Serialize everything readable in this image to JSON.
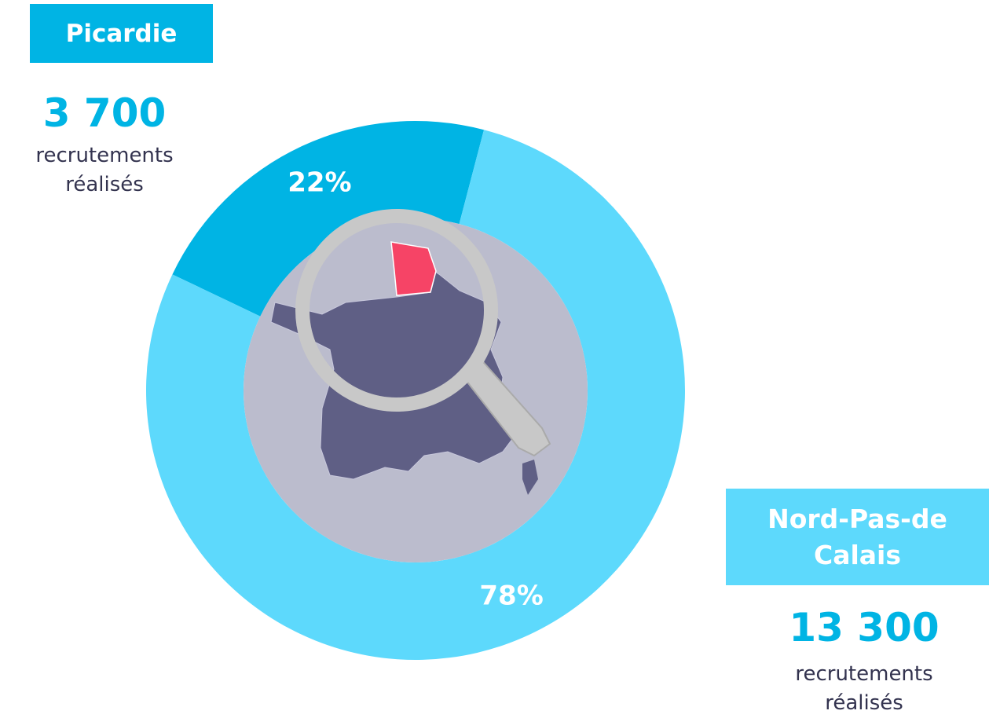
{
  "chart_data": {
    "type": "pie",
    "donut": true,
    "categories": [
      "Picardie",
      "Nord-Pas-de Calais"
    ],
    "values": [
      22,
      78
    ],
    "value_labels": [
      "22%",
      "78%"
    ],
    "colors": [
      "#00b4e4",
      "#5dd9fc"
    ],
    "totals": [
      3700,
      13300
    ],
    "total_labels": [
      "3 700",
      "13 300"
    ],
    "total_caption": "recrutements réalisés"
  }
}
